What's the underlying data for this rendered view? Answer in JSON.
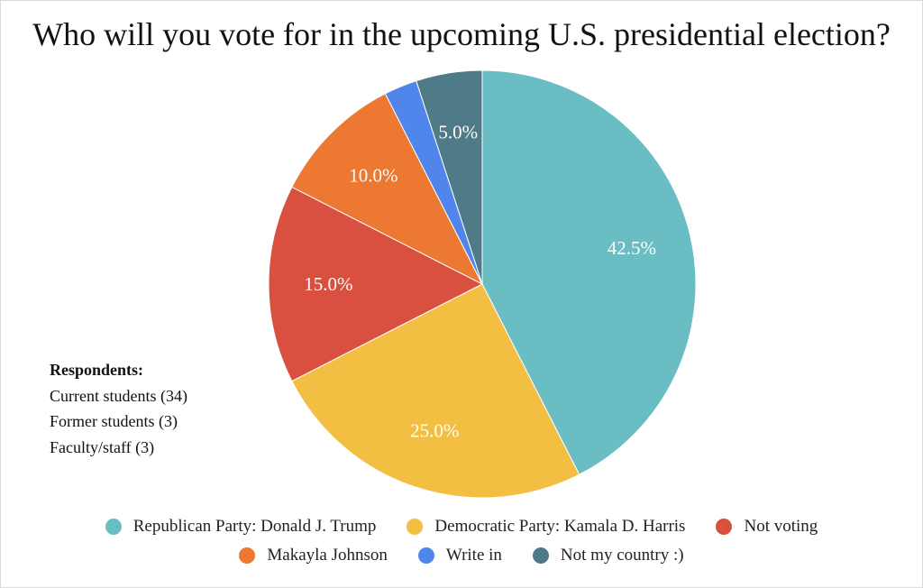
{
  "chart_data": {
    "type": "pie",
    "title": "Who will you vote for in the upcoming U.S. presidential election?",
    "slices": [
      {
        "name": "Republican Party: Donald J. Trump",
        "value": 42.5,
        "label": "42.5%",
        "color": "#6bbdc4"
      },
      {
        "name": "Democratic Party: Kamala D. Harris",
        "value": 25.0,
        "label": "25.0%",
        "color": "#f2bf42"
      },
      {
        "name": "Not voting",
        "value": 15.0,
        "label": "15.0%",
        "color": "#da5040"
      },
      {
        "name": "Makayla Johnson",
        "value": 10.0,
        "label": "10.0%",
        "color": "#ec7831"
      },
      {
        "name": "Write in",
        "value": 2.5,
        "label": "",
        "color": "#5085ec"
      },
      {
        "name": "Not my country :)",
        "value": 5.0,
        "label": "5.0%",
        "color": "#4f7a87"
      }
    ],
    "legend_position": "bottom"
  },
  "respondents": {
    "title": "Respondents:",
    "lines": [
      "Current students (34)",
      "Former students (3)",
      "Faculty/staff (3)"
    ]
  }
}
